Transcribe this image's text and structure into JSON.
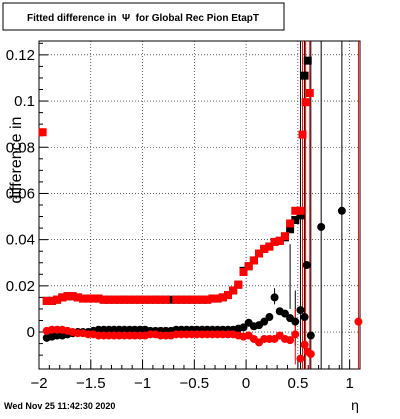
{
  "footer": {
    "timestamp": "Wed Nov 25 11:42:30 2020"
  },
  "chart_data": {
    "type": "scatter",
    "title": "Fitted difference in  Ψ  for Global Rec Pion EtapT",
    "xlabel": "η",
    "ylabel": "difference in",
    "xlim": [
      -2.0,
      1.1
    ],
    "ylim": [
      -0.016,
      0.126
    ],
    "grid": true,
    "x_ticks": [
      -2,
      -1.5,
      -1,
      -0.5,
      0,
      0.5,
      1
    ],
    "x_tick_labels": [
      "−2",
      "−1.5",
      "−1",
      "−0.5",
      "0",
      "0.5",
      "1"
    ],
    "y_ticks": [
      0,
      0.02,
      0.04,
      0.06,
      0.08,
      0.1,
      0.12
    ],
    "y_tick_labels": [
      "0",
      "0.02",
      "0.04",
      "0.06",
      "0.08",
      "0.1",
      "0.12"
    ],
    "colors": {
      "black": "#000000",
      "red": "#ff0000"
    },
    "series": [
      {
        "marker": "square",
        "color": "#000000",
        "x": [
          -1.925,
          -1.875,
          -1.825,
          -1.775,
          -1.725,
          -1.675,
          -1.625,
          -1.575,
          -1.525,
          -1.475,
          -1.425,
          -1.375,
          -1.325,
          -1.275,
          -1.225,
          -1.175,
          -1.125,
          -1.075,
          -1.025,
          -0.975,
          -0.925,
          -0.875,
          -0.825,
          -0.775,
          -0.725,
          -0.675,
          -0.625,
          -0.575,
          -0.525,
          -0.475,
          -0.425,
          -0.375,
          -0.325,
          -0.275,
          -0.225,
          -0.175,
          -0.125,
          -0.075,
          -0.025,
          0.025,
          0.075,
          0.125,
          0.175,
          0.225,
          0.275,
          0.325,
          0.375,
          0.425,
          0.475,
          0.525,
          0.565,
          0.595
        ],
        "y": [
          0.0135,
          0.0135,
          0.014,
          0.015,
          0.0155,
          0.0155,
          0.015,
          0.0145,
          0.0145,
          0.0145,
          0.0145,
          0.014,
          0.014,
          0.014,
          0.014,
          0.014,
          0.014,
          0.014,
          0.014,
          0.014,
          0.014,
          0.014,
          0.014,
          0.014,
          0.014,
          0.014,
          0.014,
          0.014,
          0.014,
          0.014,
          0.014,
          0.014,
          0.0145,
          0.0145,
          0.015,
          0.016,
          0.018,
          0.0205,
          0.0265,
          0.0285,
          0.031,
          0.034,
          0.036,
          0.037,
          0.039,
          0.0395,
          0.041,
          0.0445,
          0.0485,
          0.0505,
          0.111,
          0.1175
        ]
      },
      {
        "marker": "square",
        "color": "#ff0000",
        "x": [
          -1.965,
          -1.925,
          -1.875,
          -1.825,
          -1.775,
          -1.725,
          -1.675,
          -1.625,
          -1.575,
          -1.525,
          -1.475,
          -1.425,
          -1.375,
          -1.325,
          -1.275,
          -1.225,
          -1.175,
          -1.125,
          -1.075,
          -1.025,
          -0.975,
          -0.925,
          -0.875,
          -0.825,
          -0.775,
          -0.675,
          -0.625,
          -0.575,
          -0.525,
          -0.475,
          -0.425,
          -0.375,
          -0.325,
          -0.275,
          -0.225,
          -0.175,
          -0.125,
          -0.075,
          -0.025,
          0.025,
          0.075,
          0.125,
          0.175,
          0.225,
          0.275,
          0.325,
          0.375,
          0.425,
          0.475,
          0.525,
          0.545,
          0.575,
          0.615
        ],
        "y": [
          0.0865,
          0.0135,
          0.0135,
          0.014,
          0.015,
          0.0155,
          0.0155,
          0.015,
          0.0145,
          0.0145,
          0.0145,
          0.0145,
          0.014,
          0.014,
          0.014,
          0.014,
          0.014,
          0.014,
          0.014,
          0.014,
          0.014,
          0.014,
          0.014,
          0.014,
          0.014,
          0.014,
          0.014,
          0.014,
          0.014,
          0.014,
          0.014,
          0.014,
          0.0145,
          0.0145,
          0.015,
          0.016,
          0.018,
          0.0205,
          0.026,
          0.0285,
          0.031,
          0.034,
          0.036,
          0.037,
          0.039,
          0.0395,
          0.0415,
          0.047,
          0.0525,
          0.0525,
          0.0855,
          0.0995,
          0.1035
        ]
      },
      {
        "marker": "circle",
        "color": "#000000",
        "x": [
          -1.925,
          -1.875,
          -1.825,
          -1.775,
          -1.725,
          -1.675,
          -1.625,
          -1.575,
          -1.525,
          -1.475,
          -1.425,
          -1.375,
          -1.325,
          -1.275,
          -1.225,
          -1.175,
          -1.125,
          -1.075,
          -1.025,
          -0.975,
          -0.925,
          -0.875,
          -0.825,
          -0.775,
          -0.725,
          -0.675,
          -0.625,
          -0.575,
          -0.525,
          -0.475,
          -0.425,
          -0.375,
          -0.325,
          -0.275,
          -0.225,
          -0.175,
          -0.125,
          -0.075,
          -0.025,
          0.025,
          0.075,
          0.125,
          0.175,
          0.225,
          0.275,
          0.325,
          0.375,
          0.425,
          0.475,
          0.525,
          0.565,
          0.585,
          0.625,
          0.725,
          0.925
        ],
        "y": [
          -0.0025,
          -0.002,
          -0.0015,
          -0.0015,
          -0.001,
          -0.0005,
          0.0,
          0.0,
          0.0,
          0.0005,
          0.001,
          0.001,
          0.001,
          0.001,
          0.001,
          0.001,
          0.001,
          0.001,
          0.001,
          0.001,
          0.0005,
          0.0005,
          0.0005,
          0.0005,
          0.0005,
          0.001,
          0.001,
          0.001,
          0.001,
          0.001,
          0.001,
          0.001,
          0.001,
          0.001,
          0.001,
          0.001,
          0.001,
          0.0015,
          0.002,
          0.004,
          0.0025,
          0.003,
          0.0045,
          0.0065,
          0.015,
          0.009,
          0.008,
          0.006,
          0.0045,
          0.0095,
          0.0065,
          0.029,
          -0.0015,
          0.0455,
          0.0525
        ]
      },
      {
        "marker": "circle",
        "color": "#ff0000",
        "x": [
          -1.925,
          -1.875,
          -1.825,
          -1.775,
          -1.725,
          -1.675,
          -1.625,
          -1.575,
          -1.525,
          -1.475,
          -1.425,
          -1.375,
          -1.325,
          -1.275,
          -1.225,
          -1.175,
          -1.125,
          -1.075,
          -1.025,
          -0.975,
          -0.925,
          -0.875,
          -0.825,
          -0.775,
          -0.725,
          -0.675,
          -0.625,
          -0.575,
          -0.525,
          -0.475,
          -0.425,
          -0.375,
          -0.325,
          -0.275,
          -0.225,
          -0.175,
          -0.125,
          -0.075,
          -0.025,
          0.025,
          0.075,
          0.125,
          0.175,
          0.225,
          0.275,
          0.325,
          0.375,
          0.425,
          0.475,
          0.525,
          0.565,
          0.595,
          0.625,
          1.085
        ],
        "y": [
          0.0005,
          0.001,
          0.001,
          0.001,
          0.0005,
          0.0,
          -0.0005,
          -0.0005,
          -0.001,
          -0.001,
          -0.0015,
          -0.0015,
          -0.0015,
          -0.0015,
          -0.0015,
          -0.0015,
          -0.0015,
          -0.0015,
          -0.0015,
          -0.0015,
          -0.001,
          -0.001,
          -0.0015,
          -0.0015,
          -0.0015,
          -0.001,
          -0.001,
          -0.001,
          -0.001,
          -0.001,
          -0.001,
          -0.001,
          -0.001,
          -0.001,
          -0.001,
          -0.001,
          -0.001,
          -0.0015,
          -0.002,
          -0.0015,
          -0.003,
          -0.0045,
          -0.003,
          -0.003,
          -0.003,
          -0.0015,
          -0.003,
          -0.0035,
          -0.001,
          -0.0115,
          -0.0055,
          -0.0085,
          -0.0095,
          0.0045
        ]
      }
    ],
    "error_bars": [
      {
        "x": 0.525,
        "low": -0.016,
        "high": 0.126,
        "color": "#000000"
      },
      {
        "x": 0.565,
        "low": -0.016,
        "high": 0.126,
        "color": "#000000"
      },
      {
        "x": 0.625,
        "low": -0.016,
        "high": 0.126,
        "color": "#000000"
      },
      {
        "x": 0.725,
        "low": -0.016,
        "high": 0.126,
        "color": "#000000"
      },
      {
        "x": 0.925,
        "low": -0.016,
        "high": 0.126,
        "color": "#000000"
      },
      {
        "x": 0.545,
        "low": -0.016,
        "high": 0.126,
        "color": "#ff0000"
      },
      {
        "x": 0.575,
        "low": -0.016,
        "high": 0.126,
        "color": "#ff0000"
      },
      {
        "x": 0.615,
        "low": -0.016,
        "high": 0.126,
        "color": "#ff0000"
      },
      {
        "x": 1.085,
        "low": -0.016,
        "high": 0.126,
        "color": "#ff0000"
      },
      {
        "x": 0.475,
        "low": -0.006,
        "high": 0.018,
        "color": "#000000"
      },
      {
        "x": 0.425,
        "low": 0.01,
        "high": 0.038,
        "color": "#000000"
      },
      {
        "x": 0.275,
        "low": 0.012,
        "high": 0.019,
        "color": "#000000"
      },
      {
        "x": 0.475,
        "low": -0.014,
        "high": 0.01,
        "color": "#ff0000"
      }
    ]
  }
}
